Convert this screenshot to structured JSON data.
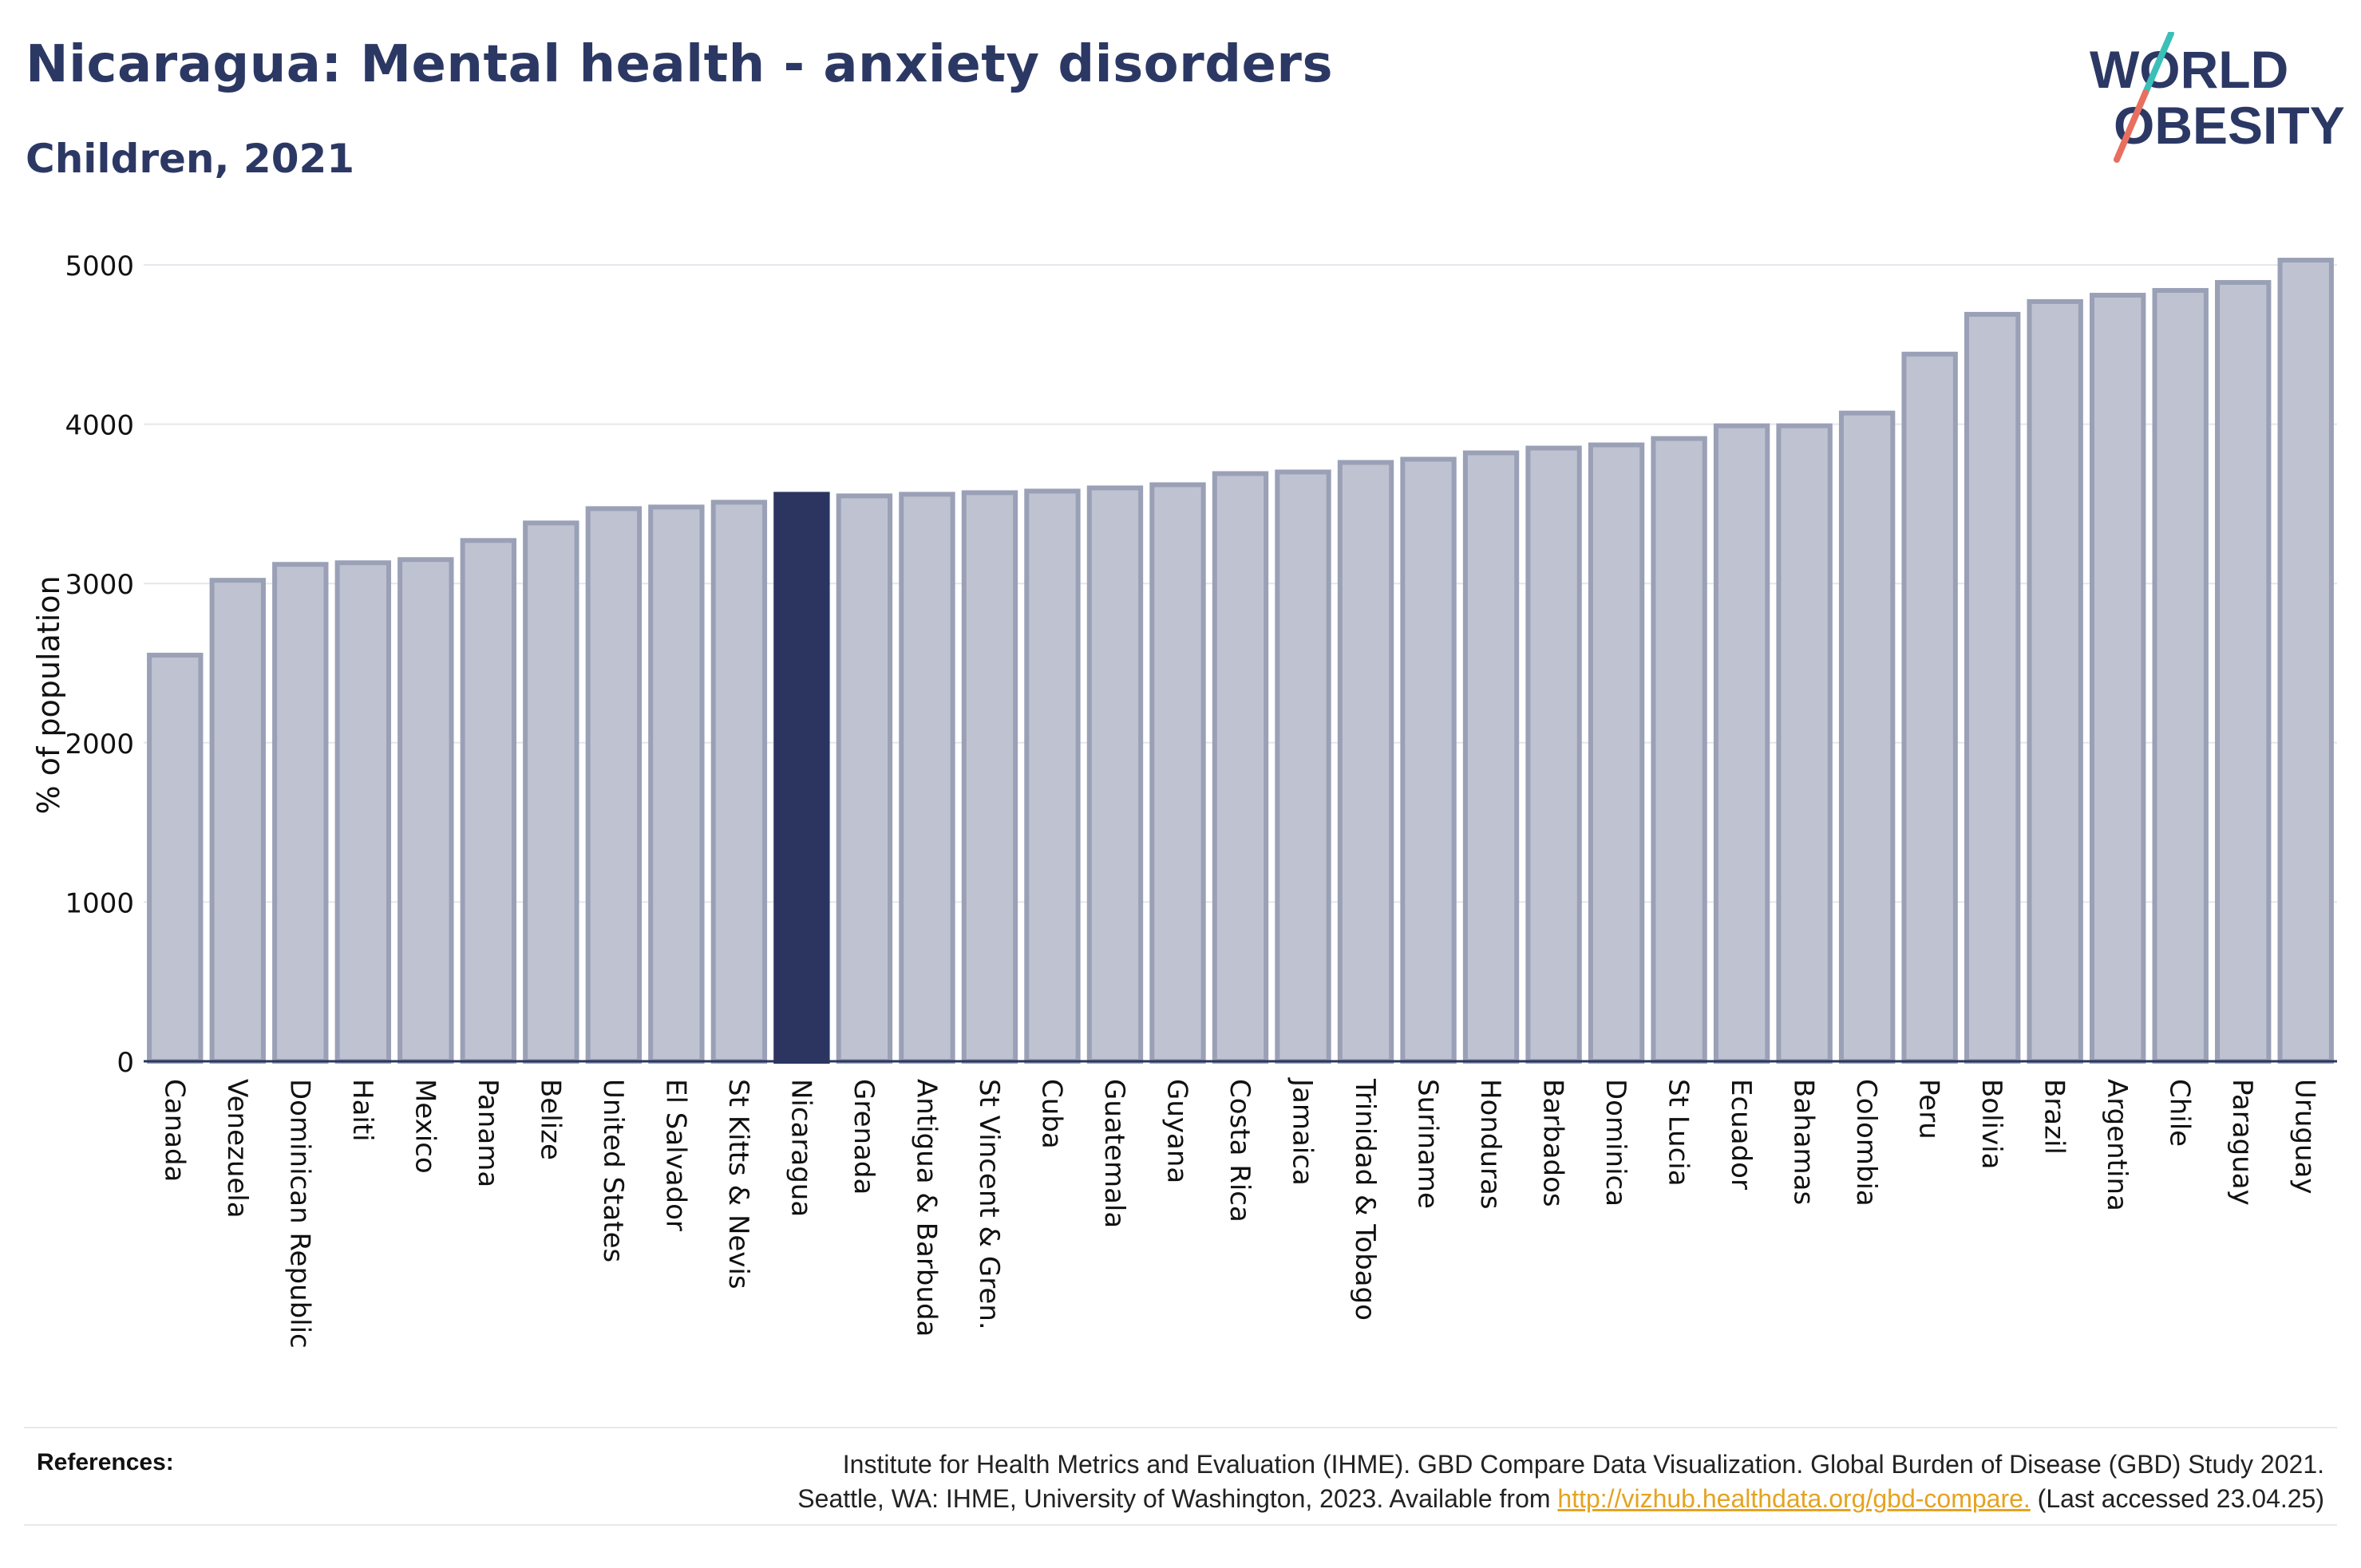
{
  "header": {
    "title": "Nicaragua: Mental health - anxiety disorders",
    "subtitle": "Children, 2021"
  },
  "logo": {
    "line1": "WORLD",
    "line2": "OBESITY"
  },
  "colors": {
    "highlight": "#2b3560",
    "bar": "#bfc2d0",
    "bar_stroke": "#9aa0b6",
    "accent_teal": "#3bbfb9",
    "accent_coral": "#e86f5f"
  },
  "chart_data": {
    "type": "bar",
    "ylabel": "% of population",
    "ylim": [
      0,
      5000
    ],
    "yticks": [
      0,
      1000,
      2000,
      3000,
      4000,
      5000
    ],
    "highlight": "Nicaragua",
    "categories": [
      "Canada",
      "Venezuela",
      "Dominican Republic",
      "Haiti",
      "Mexico",
      "Panama",
      "Belize",
      "United States",
      "El Salvador",
      "St Kitts & Nevis",
      "Nicaragua",
      "Grenada",
      "Antigua & Barbuda",
      "St Vincent & Gren.",
      "Cuba",
      "Guatemala",
      "Guyana",
      "Costa Rica",
      "Jamaica",
      "Trinidad & Tobago",
      "Suriname",
      "Honduras",
      "Barbados",
      "Dominica",
      "St Lucia",
      "Ecuador",
      "Bahamas",
      "Colombia",
      "Peru",
      "Bolivia",
      "Brazil",
      "Argentina",
      "Chile",
      "Paraguay",
      "Uruguay"
    ],
    "values": [
      2550,
      3020,
      3120,
      3130,
      3150,
      3270,
      3380,
      3470,
      3480,
      3510,
      3560,
      3550,
      3560,
      3570,
      3580,
      3600,
      3620,
      3690,
      3700,
      3760,
      3780,
      3820,
      3850,
      3870,
      3910,
      3990,
      3990,
      4070,
      4440,
      4690,
      4770,
      4810,
      4840,
      4890,
      5030
    ]
  },
  "references": {
    "label": "References:",
    "line1": "Institute for Health Metrics and Evaluation (IHME). GBD Compare Data Visualization. Global Burden of Disease (GBD) Study 2021.",
    "line2_prefix": "Seattle, WA: IHME, University of Washington, 2023. Available from ",
    "link": "http://vizhub.healthdata.org/gbd-compare.",
    "line2_suffix": " (Last accessed 23.04.25)"
  }
}
